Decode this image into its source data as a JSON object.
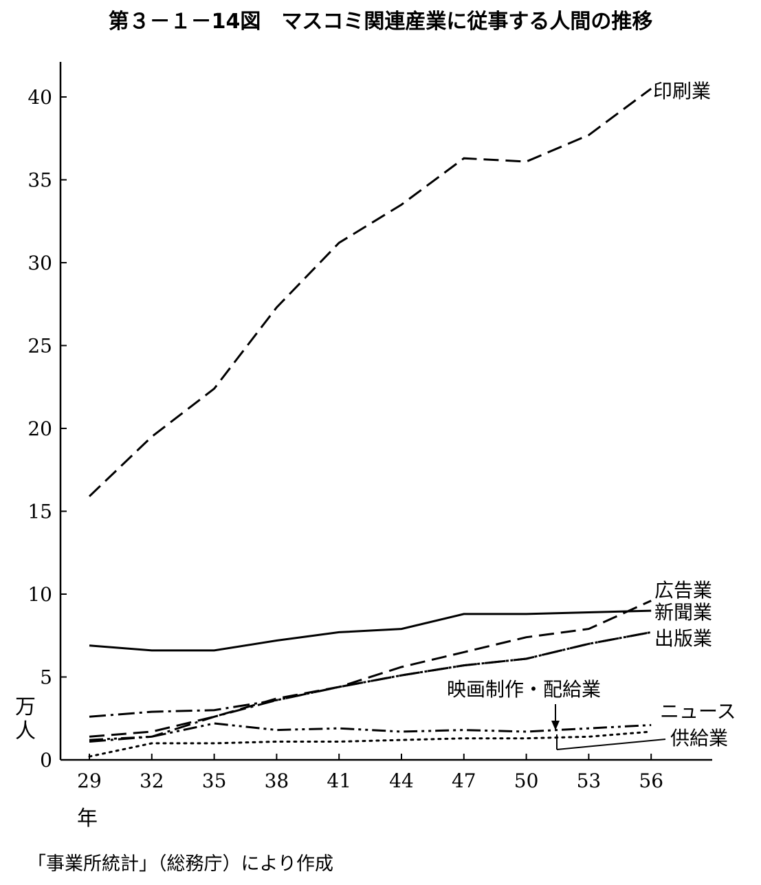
{
  "chart_data": {
    "type": "line",
    "title": "第３－１－14図　マスコミ関連産業に従事する人間の推移",
    "x": [
      "29",
      "32",
      "35",
      "38",
      "41",
      "44",
      "47",
      "50",
      "53",
      "56"
    ],
    "xlabel": "年",
    "ylabel": "万人",
    "ylim": [
      0,
      42
    ],
    "yticks": [
      "0",
      "5",
      "10",
      "15",
      "20",
      "25",
      "30",
      "35",
      "40"
    ],
    "grid": false,
    "legend": "inline-right",
    "series": [
      {
        "name": "印刷業",
        "style": "dashed",
        "values": [
          15.9,
          19.5,
          22.4,
          27.3,
          31.2,
          33.5,
          36.3,
          36.1,
          37.7,
          40.5
        ]
      },
      {
        "name": "広告業",
        "style": "dashed",
        "values": [
          1.4,
          1.7,
          2.6,
          3.7,
          4.4,
          5.6,
          6.5,
          7.4,
          7.9,
          9.6
        ]
      },
      {
        "name": "新聞業",
        "style": "solid",
        "values": [
          6.9,
          6.6,
          6.6,
          7.2,
          7.7,
          7.9,
          8.8,
          8.8,
          8.9,
          9.0
        ]
      },
      {
        "name": "出版業",
        "style": "dashdot",
        "values": [
          1.1,
          1.4,
          2.6,
          3.6,
          4.4,
          5.1,
          5.7,
          6.1,
          7.0,
          7.7
        ]
      },
      {
        "name": "映画制作・配給業",
        "style": "dashdot",
        "values": [
          2.6,
          2.9,
          3.0,
          3.6,
          4.4,
          5.1,
          5.7,
          6.1,
          7.0,
          7.7
        ]
      },
      {
        "name": "ニュース",
        "style": "dashdotdot",
        "values": [
          1.2,
          1.4,
          2.2,
          1.8,
          1.9,
          1.7,
          1.8,
          1.7,
          1.9,
          2.1
        ]
      },
      {
        "name": "供給業",
        "style": "dotted",
        "values": [
          0.2,
          1.0,
          1.0,
          1.1,
          1.1,
          1.2,
          1.3,
          1.3,
          1.4,
          1.7
        ]
      }
    ]
  },
  "source": "「事業所統計」（総務庁）により作成"
}
